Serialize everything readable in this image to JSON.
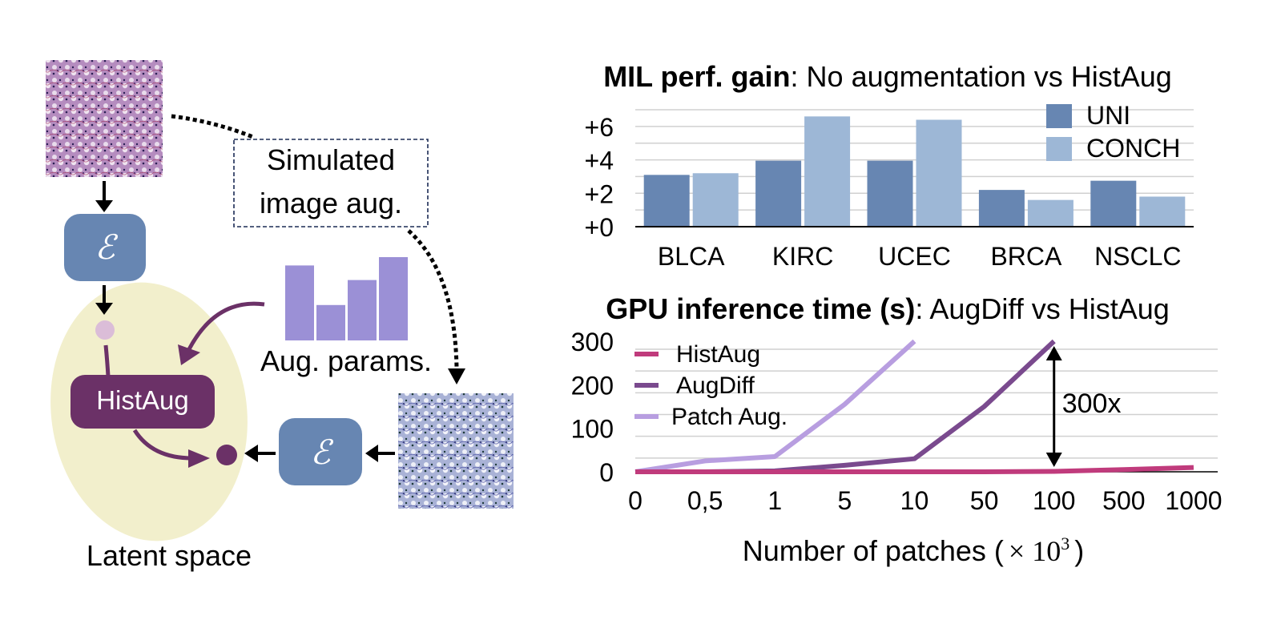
{
  "diagram": {
    "simulated_box_label_line1": "Simulated",
    "simulated_box_label_line2": "image aug.",
    "encoder_symbol": "ℰ",
    "histaug_label": "HistAug",
    "aug_params_label": "Aug. params.",
    "aug_params_bars": [
      0.72,
      0.34,
      0.58,
      0.8
    ],
    "latent_space_label": "Latent space",
    "icons": {
      "original_patch": "he-stained-tissue-patch",
      "augmented_patch": "augmented-tissue-patch",
      "encoder": "encoder-epsilon-icon",
      "latent_ellipse": "latent-space-ellipse"
    },
    "colors": {
      "encoder_fill": "#6786b2",
      "histaug_fill": "#6b3167",
      "latent_fill": "#f2efcc",
      "aug_bar_fill": "#9b90d6",
      "latent_point_light": "#dbbdd8",
      "latent_point_dark": "#6b3167",
      "purple_arrow": "#6b3167",
      "patch_he": "#8a4f8f",
      "patch_aug": "#6b7ab0"
    }
  },
  "chart_data": [
    {
      "type": "bar",
      "title_bold": "MIL perf. gain",
      "title_rest": ": No augmentation vs HistAug",
      "categories": [
        "BLCA",
        "KIRC",
        "UCEC",
        "BRCA",
        "NSCLC"
      ],
      "series": [
        {
          "name": "UNI",
          "color": "#6786b2",
          "values": [
            3.1,
            3.95,
            3.95,
            2.2,
            2.75
          ]
        },
        {
          "name": "CONCH",
          "color": "#9db7d6",
          "values": [
            3.2,
            6.6,
            6.4,
            1.6,
            1.8
          ]
        }
      ],
      "yticks": [
        0,
        2,
        4,
        6
      ],
      "ytick_labels": [
        "+0",
        "+2",
        "+4",
        "+6"
      ],
      "ylim": [
        0,
        7
      ],
      "grid": true,
      "legend": "top-right",
      "xlabel": "",
      "ylabel": ""
    },
    {
      "type": "line",
      "title_bold": "GPU inference time (s)",
      "title_rest": ": AugDiff vs HistAug",
      "x": [
        "0",
        "0,5",
        "1",
        "5",
        "10",
        "50",
        "100",
        "500",
        "1000"
      ],
      "series": [
        {
          "name": "HistAug",
          "color": "#c03b7c",
          "values": [
            0,
            0,
            0,
            0,
            0,
            0,
            1,
            5,
            10
          ]
        },
        {
          "name": "AugDiff",
          "color": "#7a4a8e",
          "values": [
            0,
            0,
            2,
            15,
            30,
            150,
            300,
            null,
            null
          ]
        },
        {
          "name": "Patch Aug.",
          "color": "#b89ee0",
          "values": [
            0,
            25,
            35,
            155,
            300,
            null,
            null,
            null,
            null
          ]
        }
      ],
      "yticks": [
        0,
        100,
        200,
        300
      ],
      "ylim": [
        0,
        300
      ],
      "grid": true,
      "legend": "top-left",
      "xlabel": "Number of patches (",
      "xlabel_math": "× 10",
      "xlabel_exp": "3",
      "xlabel_close": ")",
      "annotation": {
        "label": "300x",
        "from_value": 0,
        "to_value": 300,
        "at_x": "100"
      }
    }
  ]
}
